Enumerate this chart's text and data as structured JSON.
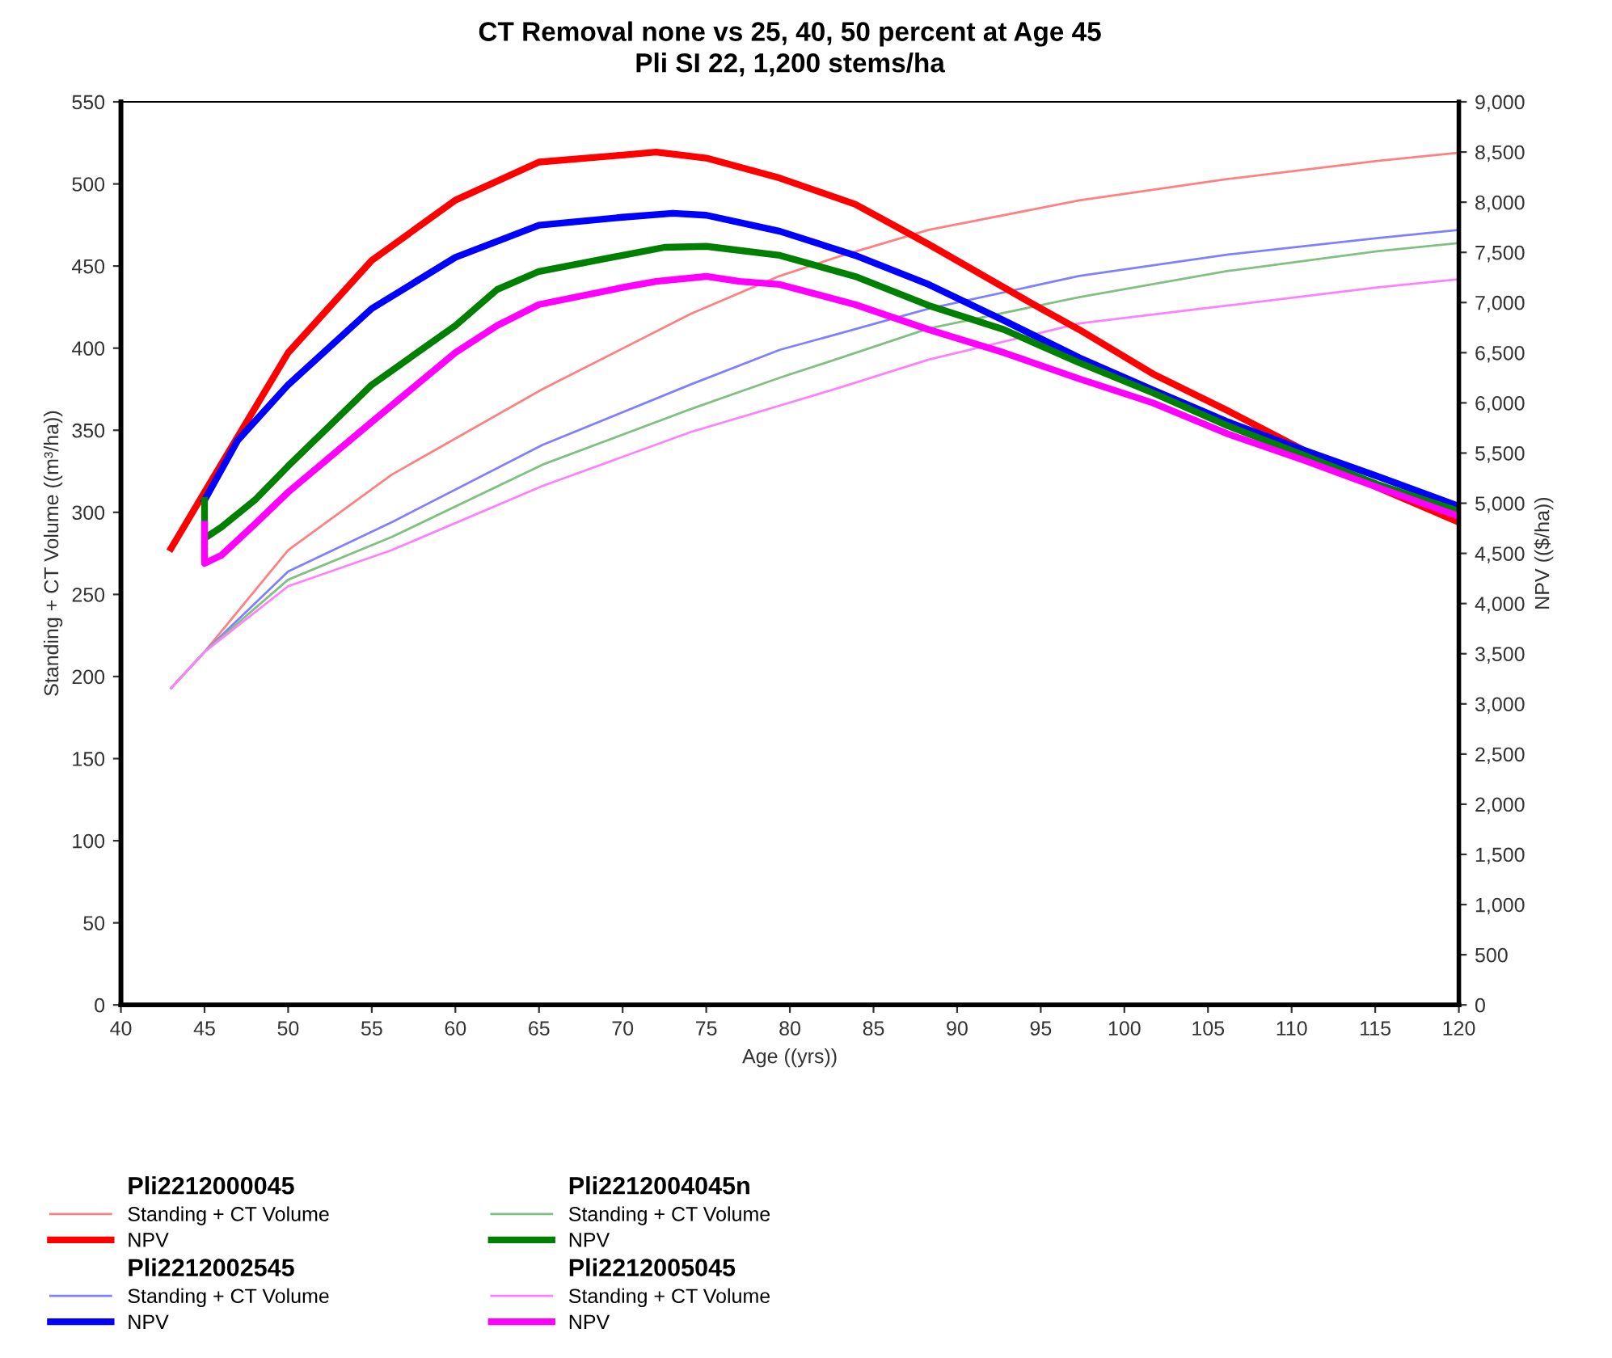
{
  "chart_data": {
    "type": "line",
    "title": "CT Removal none vs 25, 40, 50 percent at Age 45",
    "subtitle": "Pli SI 22, 1,200 stems/ha",
    "xlabel": "Age ((yrs))",
    "ylabel": "Standing + CT Volume ((m³/ha))",
    "y2label": "NPV (($/ha))",
    "annotations": [
      "Pli2212000045",
      "Pli2212002545",
      "Pli2212004045n",
      "Pli2212005045"
    ],
    "xlim": [
      40,
      120
    ],
    "xticks": [
      40,
      45,
      50,
      55,
      60,
      65,
      70,
      75,
      80,
      85,
      90,
      95,
      100,
      105,
      110,
      115,
      120
    ],
    "ylim": [
      0,
      550
    ],
    "yticks": [
      0,
      50,
      100,
      150,
      200,
      250,
      300,
      350,
      400,
      450,
      500,
      550
    ],
    "y2lim": [
      0,
      9000
    ],
    "y2ticks": [
      0,
      500,
      {
        "value": 1000,
        "label": "1,000"
      },
      {
        "value": 1500,
        "label": "1,500"
      },
      {
        "value": 2000,
        "label": "2,000"
      },
      {
        "value": 2500,
        "label": "2,500"
      },
      {
        "value": 3000,
        "label": "3,000"
      },
      {
        "value": 3500,
        "label": "3,500"
      },
      {
        "value": 4000,
        "label": "4,000"
      },
      {
        "value": 4500,
        "label": "4,500"
      },
      {
        "value": 5000,
        "label": "5,000"
      },
      {
        "value": 5500,
        "label": "5,500"
      },
      {
        "value": 6000,
        "label": "6,000"
      },
      {
        "value": 6500,
        "label": "6,500"
      },
      {
        "value": 7000,
        "label": "7,000"
      },
      {
        "value": 7500,
        "label": "7,500"
      },
      {
        "value": 8000,
        "label": "8,000"
      },
      {
        "value": 8500,
        "label": "8,500"
      },
      {
        "value": 9000,
        "label": "9,000"
      }
    ],
    "grid": false,
    "legend": "bottom",
    "marker": "none",
    "line_style": "solid",
    "series": [
      {
        "name": "Standing + CT Volume",
        "color": "#ff8080",
        "x": [
          43,
          45,
          50,
          56.2,
          65.2,
          74.1,
          79.4,
          83,
          88.3,
          97.3,
          106.2,
          115.1,
          120
        ],
        "values": [
          193,
          215,
          277,
          323,
          375,
          421,
          444,
          456,
          472,
          490,
          503,
          514,
          519
        ]
      },
      {
        "name": "NPV",
        "color": "#ff0000",
        "axis": "y2",
        "x": [
          43,
          45,
          50,
          55,
          60,
          65,
          70,
          72,
          75,
          79.4,
          83.9,
          88.3,
          92.8,
          95,
          97.3,
          101.7,
          106.2,
          110.7,
          115.1,
          120
        ],
        "values": [
          4550,
          5110,
          6500,
          7420,
          8020,
          8400,
          8470,
          8500,
          8440,
          8240,
          7980,
          7580,
          7150,
          6940,
          6730,
          6290,
          5920,
          5530,
          5160,
          4810
        ]
      },
      {
        "name": "Standing + CT Volume",
        "color": "#8080ff",
        "x": [
          43,
          45,
          50,
          56.2,
          65.2,
          74.1,
          79.4,
          83,
          88.3,
          97.3,
          106.2,
          115.1,
          120
        ],
        "values": [
          193,
          215,
          264,
          294,
          341,
          378,
          399,
          409,
          424,
          444,
          457,
          467,
          472
        ]
      },
      {
        "name": "NPV",
        "color": "#0000ff",
        "axis": "y2",
        "x": [
          45,
          47,
          50,
          55,
          60,
          65,
          70,
          73,
          75,
          79.4,
          83.9,
          88.3,
          92.8,
          97.3,
          101.7,
          106.2,
          110.7,
          115.1,
          120
        ],
        "values": [
          5030,
          5630,
          6180,
          6940,
          7450,
          7770,
          7850,
          7890,
          7870,
          7710,
          7470,
          7180,
          6820,
          6450,
          6130,
          5810,
          5530,
          5270,
          4970
        ]
      },
      {
        "name": "Standing + CT Volume",
        "color": "#80c080",
        "x": [
          43,
          45,
          50,
          56.2,
          65.2,
          74.1,
          79.4,
          83,
          88.3,
          97.3,
          106.2,
          115.1,
          120
        ],
        "values": [
          193,
          215,
          259,
          285,
          329,
          363,
          382,
          394,
          412,
          431,
          447,
          459,
          464
        ]
      },
      {
        "name": "NPV",
        "color": "#008000",
        "axis": "y2",
        "x": [
          45,
          45,
          46,
          48,
          50,
          55,
          60,
          62.5,
          65,
          70,
          72.5,
          75,
          79.4,
          83.9,
          88.3,
          92.8,
          97.3,
          101.7,
          106.2,
          110.7,
          115.1,
          120
        ],
        "values": [
          5030,
          4650,
          4760,
          5030,
          5370,
          6180,
          6770,
          7130,
          7310,
          7470,
          7550,
          7560,
          7470,
          7260,
          6970,
          6730,
          6400,
          6100,
          5770,
          5480,
          5190,
          4920
        ]
      },
      {
        "name": "Standing + CT Volume",
        "color": "#ff80ff",
        "x": [
          43,
          45,
          50,
          56.2,
          65.2,
          74.1,
          79.4,
          83,
          88.3,
          97.3,
          106.2,
          115.1,
          120
        ],
        "values": [
          193,
          215,
          255,
          277,
          316,
          349,
          365,
          376,
          393,
          415,
          426,
          437,
          442
        ]
      },
      {
        "name": "NPV",
        "color": "#ff00ff",
        "axis": "y2",
        "x": [
          45,
          45,
          46,
          48,
          50,
          55,
          60,
          62.5,
          65,
          70,
          72,
          75,
          77,
          79.4,
          83.9,
          88.3,
          92.8,
          97.3,
          101.7,
          106.2,
          110.7,
          115.1,
          120
        ],
        "values": [
          4790,
          4400,
          4480,
          4790,
          5110,
          5810,
          6500,
          6770,
          6980,
          7150,
          7210,
          7260,
          7210,
          7180,
          6980,
          6730,
          6500,
          6240,
          6000,
          5690,
          5430,
          5160,
          4870
        ]
      }
    ]
  }
}
